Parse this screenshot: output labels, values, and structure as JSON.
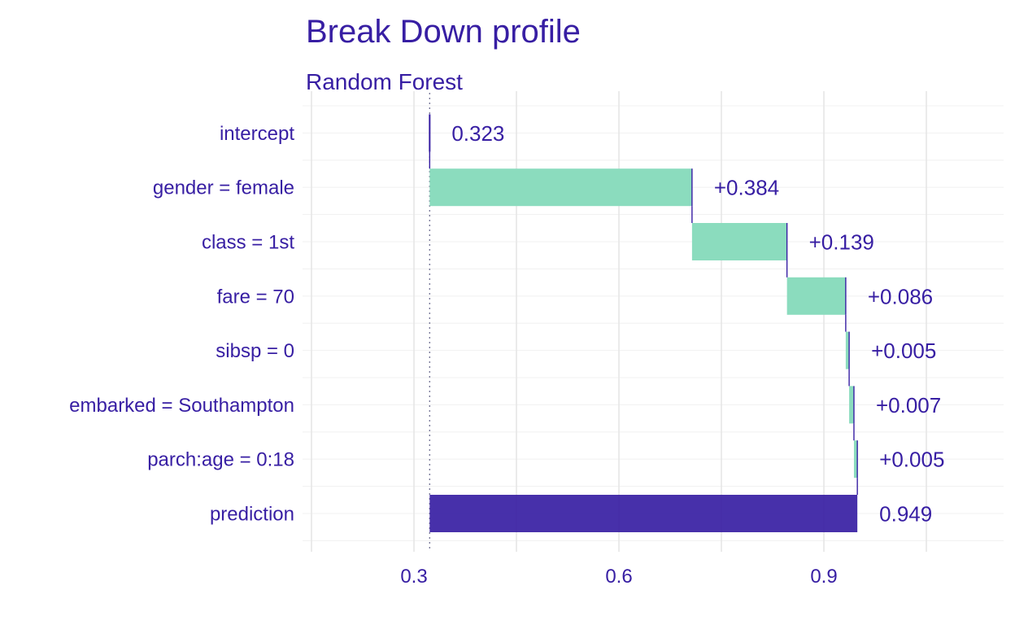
{
  "chart_data": {
    "type": "waterfall",
    "title": "Break Down profile",
    "subtitle": "Random Forest",
    "xlabel": "",
    "ylabel": "",
    "xlim": [
      0.15,
      1.12
    ],
    "x_ticks": [
      0.3,
      0.6,
      0.9
    ],
    "x_tick_labels": [
      "0.3",
      "0.6",
      "0.9"
    ],
    "baseline": 0.323,
    "grid": true,
    "colors": {
      "positive": "#8bdcbe",
      "prediction": "#371ea3",
      "text": "#371ea3",
      "connector": "#371ea3"
    },
    "rows": [
      {
        "variable": "intercept",
        "start": 0.323,
        "end": 0.323,
        "label": "0.323",
        "kind": "intercept"
      },
      {
        "variable": "gender = female",
        "start": 0.323,
        "end": 0.707,
        "label": "+0.384",
        "kind": "positive"
      },
      {
        "variable": "class = 1st",
        "start": 0.707,
        "end": 0.846,
        "label": "+0.139",
        "kind": "positive"
      },
      {
        "variable": "fare = 70",
        "start": 0.846,
        "end": 0.932,
        "label": "+0.086",
        "kind": "positive"
      },
      {
        "variable": "sibsp = 0",
        "start": 0.932,
        "end": 0.937,
        "label": "+0.005",
        "kind": "positive"
      },
      {
        "variable": "embarked = Southampton",
        "start": 0.937,
        "end": 0.944,
        "label": "+0.007",
        "kind": "positive"
      },
      {
        "variable": "parch:age = 0:18",
        "start": 0.944,
        "end": 0.949,
        "label": "+0.005",
        "kind": "positive"
      },
      {
        "variable": "prediction",
        "start": 0.323,
        "end": 0.949,
        "label": "0.949",
        "kind": "prediction"
      }
    ]
  }
}
